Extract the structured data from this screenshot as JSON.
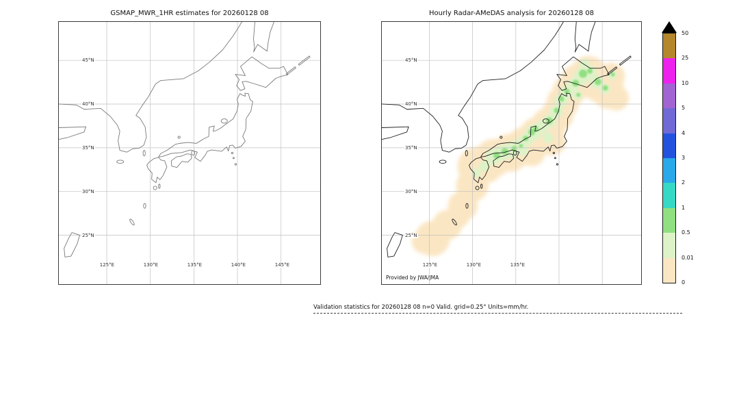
{
  "left_panel": {
    "title": "GSMAP_MWR_1HR estimates for 20260128 08",
    "lat_ticks": [
      "45°N",
      "40°N",
      "35°N",
      "30°N",
      "25°N"
    ],
    "lon_ticks": [
      "125°E",
      "130°E",
      "135°E",
      "140°E",
      "145°E"
    ]
  },
  "right_panel": {
    "title": "Hourly Radar-AMeDAS analysis for 20260128 08",
    "lat_ticks": [
      "45°N",
      "40°N",
      "35°N",
      "30°N",
      "25°N"
    ],
    "lon_ticks": [
      "125°E",
      "130°E",
      "135°E"
    ],
    "credit": "Provided by JWA/JMA"
  },
  "colorbar": {
    "units": "mm/hr",
    "labels_top_to_bottom": [
      "50",
      "25",
      "10",
      "5",
      "4",
      "3",
      "2",
      "1",
      "0.5",
      "0.01",
      "0"
    ],
    "segment_colors_top_to_bottom": [
      "#b5862b",
      "#ee22ee",
      "#a264d2",
      "#7069d6",
      "#2353de",
      "#29a9e9",
      "#36d9c5",
      "#90e081",
      "#def2c8",
      "#fbe6c3"
    ],
    "overflow_color": "#000000"
  },
  "footer": {
    "text": "Validation statistics for 20260128 08  n=0 Valid. grid=0.25° Units=mm/hr."
  },
  "chart_data": {
    "type": "heatmap",
    "panels": [
      {
        "title": "GSMAP_MWR_1HR estimates for 20260128 08",
        "precipitation_shown": "none (empty basemap, no valid GSMaP MWR estimates plotted)"
      },
      {
        "title": "Hourly Radar-AMeDAS analysis for 20260128 08",
        "precipitation_shown": "continuous band of trace to light precipitation (0 to 1 mm/hr) along the Japanese archipelago from the Ryukyu Islands through Kyushu, Shikoku, western and northern Honshu into Hokkaido; pale orange = 0-0.01, pale green = 0.01-0.5, green = 0.5-1 mm/hr"
      }
    ],
    "color_levels_mm_per_hr": [
      0,
      0.01,
      0.5,
      1,
      2,
      3,
      4,
      5,
      10,
      25,
      50
    ],
    "axes": {
      "lon_ticks_deg_e": [
        125,
        130,
        135,
        140,
        145
      ],
      "lat_ticks_deg_n": [
        25,
        30,
        35,
        40,
        45
      ],
      "lon_range_deg_e": [
        119.5,
        149.5
      ],
      "lat_range_deg_n": [
        19.4,
        49.4
      ],
      "grid": true
    },
    "stats": {
      "n": 0,
      "grid_deg": 0.25,
      "units": "mm/hr"
    },
    "precipitation_blobs": {
      "coordinate_space": "map-pixels (viewBox 384x385, x east, y south)",
      "levels": [
        {
          "range_mm_hr": "0-0.01",
          "color": "#fbe6c3",
          "blobs": [
            [
              75,
              318,
              26
            ],
            [
              62,
              322,
              18
            ],
            [
              97,
              298,
              22
            ],
            [
              112,
              285,
              18
            ],
            [
              120,
              270,
              22
            ],
            [
              134,
              240,
              24
            ],
            [
              158,
              218,
              18
            ],
            [
              140,
              212,
              28
            ],
            [
              165,
              200,
              28
            ],
            [
              190,
              192,
              28
            ],
            [
              200,
              200,
              16
            ],
            [
              212,
              182,
              28
            ],
            [
              222,
              192,
              20
            ],
            [
              230,
              166,
              26
            ],
            [
              247,
              152,
              26
            ],
            [
              252,
              176,
              20
            ],
            [
              260,
              136,
              24
            ],
            [
              268,
              118,
              24
            ],
            [
              277,
              102,
              24
            ],
            [
              290,
              88,
              26
            ],
            [
              306,
              78,
              28
            ],
            [
              322,
              92,
              26
            ],
            [
              336,
              104,
              24
            ],
            [
              348,
              112,
              18
            ],
            [
              340,
              80,
              20
            ]
          ]
        },
        {
          "range_mm_hr": "0.01-0.5",
          "color": "#def2c8",
          "blobs": [
            [
              165,
              198,
              12
            ],
            [
              178,
              192,
              12
            ],
            [
              192,
              188,
              12
            ],
            [
              205,
              180,
              10
            ],
            [
              215,
              172,
              10
            ],
            [
              225,
              162,
              12
            ],
            [
              237,
              154,
              10
            ],
            [
              248,
              146,
              10
            ],
            [
              258,
              132,
              10
            ],
            [
              265,
              116,
              10
            ],
            [
              273,
              104,
              10
            ],
            [
              284,
              92,
              10
            ],
            [
              296,
              80,
              12
            ],
            [
              308,
              74,
              10
            ],
            [
              318,
              88,
              10
            ],
            [
              330,
              98,
              8
            ],
            [
              341,
              78,
              7
            ],
            [
              300,
              62,
              8
            ],
            [
              290,
              108,
              7
            ],
            [
              152,
              212,
              8
            ],
            [
              140,
              222,
              7
            ],
            [
              210,
              190,
              7
            ],
            [
              246,
              170,
              8
            ]
          ]
        },
        {
          "range_mm_hr": "0.5-1",
          "color": "#90e081",
          "blobs": [
            [
              170,
              196,
              5
            ],
            [
              182,
              190,
              5
            ],
            [
              196,
              186,
              4
            ],
            [
              222,
              162,
              5
            ],
            [
              228,
              157,
              4
            ],
            [
              248,
              145,
              5
            ],
            [
              259,
              130,
              4
            ],
            [
              266,
              113,
              4
            ],
            [
              274,
              102,
              4
            ],
            [
              287,
              90,
              5
            ],
            [
              298,
              76,
              6
            ],
            [
              308,
              72,
              4
            ],
            [
              320,
              88,
              5
            ],
            [
              331,
              97,
              4
            ],
            [
              342,
              77,
              3
            ],
            [
              291,
              107,
              3
            ],
            [
              213,
              171,
              4
            ],
            [
              206,
              182,
              3
            ]
          ]
        }
      ]
    }
  }
}
